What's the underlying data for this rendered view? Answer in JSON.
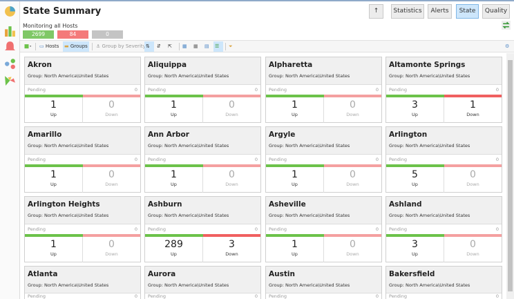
{
  "header": {
    "title": "State Summary",
    "subtitle": "Monitoring all Hosts",
    "up_count": "2699",
    "down_count": "84",
    "pending_count": "0"
  },
  "nav_buttons": {
    "up": "↑",
    "statistics": "Statistics",
    "alerts": "Alerts",
    "state": "State",
    "quality": "Quality",
    "active": "State"
  },
  "toolbar": {
    "hosts": "Hosts",
    "groups": "Groups",
    "group_by_severity": "Group by Severity"
  },
  "colors": {
    "up": "#6cc24a",
    "up_light": "#8fd16f",
    "down": "#f06060",
    "down_light": "#f4a0a0",
    "pending": "#c8c8c8"
  },
  "card_labels": {
    "pending": "Pending",
    "up": "Up",
    "down": "Down"
  },
  "cards": [
    {
      "name": "Akron",
      "group": "Group: North America\\United States",
      "pending": "0",
      "up": "1",
      "down": "0"
    },
    {
      "name": "Aliquippa",
      "group": "Group: North America\\United States",
      "pending": "0",
      "up": "1",
      "down": "0"
    },
    {
      "name": "Alpharetta",
      "group": "Group: North America\\United States",
      "pending": "0",
      "up": "1",
      "down": "0"
    },
    {
      "name": "Altamonte Springs",
      "group": "Group: North America\\United States",
      "pending": "0",
      "up": "3",
      "down": "1"
    },
    {
      "name": "Amarillo",
      "group": "Group: North America\\United States",
      "pending": "0",
      "up": "1",
      "down": "0"
    },
    {
      "name": "Ann Arbor",
      "group": "Group: North America\\United States",
      "pending": "0",
      "up": "1",
      "down": "0"
    },
    {
      "name": "Argyle",
      "group": "Group: North America\\United States",
      "pending": "0",
      "up": "1",
      "down": "0"
    },
    {
      "name": "Arlington",
      "group": "Group: North America\\United States",
      "pending": "0",
      "up": "5",
      "down": "0"
    },
    {
      "name": "Arlington Heights",
      "group": "Group: North America\\United States",
      "pending": "0",
      "up": "1",
      "down": "0"
    },
    {
      "name": "Ashburn",
      "group": "Group: North America\\United States",
      "pending": "0",
      "up": "289",
      "down": "3"
    },
    {
      "name": "Asheville",
      "group": "Group: North America\\United States",
      "pending": "0",
      "up": "1",
      "down": "0"
    },
    {
      "name": "Ashland",
      "group": "Group: North America\\United States",
      "pending": "0",
      "up": "3",
      "down": "0"
    },
    {
      "name": "Atlanta",
      "group": "Group: North America\\United States",
      "pending": "0",
      "up": "",
      "down": ""
    },
    {
      "name": "Aurora",
      "group": "Group: North America\\United States",
      "pending": "0",
      "up": "",
      "down": ""
    },
    {
      "name": "Austin",
      "group": "Group: North America\\United States",
      "pending": "0",
      "up": "",
      "down": ""
    },
    {
      "name": "Bakersfield",
      "group": "Group: North America\\United States",
      "pending": "0",
      "up": "",
      "down": ""
    }
  ]
}
